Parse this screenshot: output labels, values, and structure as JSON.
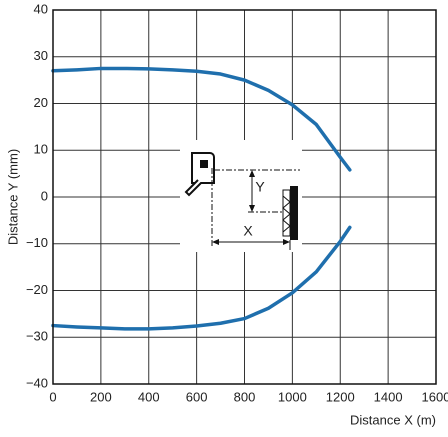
{
  "chart_data": {
    "type": "line",
    "x_label": "Distance X (m)",
    "y_label": "Distance Y (mm)",
    "x": [
      0,
      100,
      200,
      300,
      400,
      500,
      600,
      700,
      800,
      900,
      1000,
      1100,
      1200,
      1240
    ],
    "series": [
      {
        "color": "#1f6fad",
        "values": [
          27,
          27.2,
          27.5,
          27.5,
          27.4,
          27.2,
          26.9,
          26.3,
          25,
          22.8,
          19.7,
          15.5,
          8.5,
          5.8
        ]
      },
      {
        "color": "#1f6fad",
        "values": [
          -27.5,
          -27.8,
          -28,
          -28.2,
          -28.2,
          -28,
          -27.6,
          -27,
          -26,
          -23.8,
          -20.5,
          -16,
          -9.5,
          -6.5
        ]
      }
    ],
    "xlim": [
      0,
      1600
    ],
    "xticks": [
      0,
      200,
      400,
      600,
      800,
      1000,
      1200,
      1400,
      1600
    ],
    "ylim": [
      -40,
      40
    ],
    "yticks": [
      {
        "value": -40,
        "label": "−40"
      },
      {
        "value": -30,
        "label": "−30"
      },
      {
        "value": -20,
        "label": "−20"
      },
      {
        "value": -10,
        "label": "−10"
      },
      0,
      10,
      20,
      30,
      40
    ],
    "grid": true,
    "annotations": [
      "Y",
      "X"
    ]
  }
}
